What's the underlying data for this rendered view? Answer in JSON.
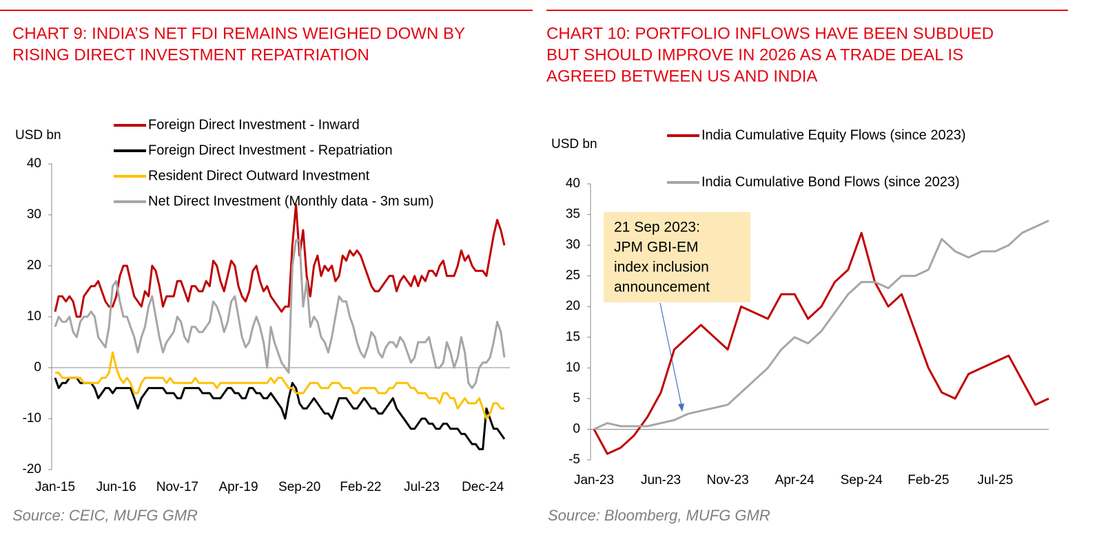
{
  "chart_data": [
    {
      "type": "line",
      "title": [
        "CHART 9: INDIA’S NET FDI REMAINS WEIGHED DOWN BY",
        "RISING DIRECT INVESTMENT REPATRIATION"
      ],
      "y_label": "USD bn",
      "source": "Source: CEIC, MUFG GMR",
      "ylim": [
        -20,
        40
      ],
      "yticks": [
        -20,
        -10,
        0,
        10,
        20,
        30,
        40
      ],
      "grid": false,
      "categories": [
        "Jan-15",
        null,
        null,
        null,
        null,
        null,
        null,
        null,
        null,
        null,
        null,
        null,
        null,
        null,
        null,
        null,
        null,
        "Jun-16",
        null,
        null,
        null,
        null,
        null,
        null,
        null,
        null,
        null,
        null,
        null,
        null,
        null,
        null,
        null,
        null,
        "Nov-17",
        null,
        null,
        null,
        null,
        null,
        null,
        null,
        null,
        null,
        null,
        null,
        null,
        null,
        null,
        null,
        null,
        "Apr-19",
        null,
        null,
        null,
        null,
        null,
        null,
        null,
        null,
        null,
        null,
        null,
        null,
        null,
        null,
        null,
        null,
        "Sep-20",
        null,
        null,
        null,
        null,
        null,
        null,
        null,
        null,
        null,
        null,
        null,
        null,
        null,
        null,
        null,
        null,
        "Feb-22",
        null,
        null,
        null,
        null,
        null,
        null,
        null,
        null,
        null,
        null,
        null,
        null,
        null,
        null,
        null,
        null,
        "Jul-23",
        null,
        null,
        null,
        null,
        null,
        null,
        null,
        null,
        null,
        null,
        null,
        null,
        null,
        null,
        null,
        null,
        "Dec-24",
        null,
        null,
        null,
        null,
        null,
        null
      ],
      "series": [
        {
          "name": "Foreign Direct Investment - Inward",
          "color": "#c00000",
          "values": [
            11,
            14,
            14,
            13,
            14,
            13,
            10,
            10,
            14,
            15,
            16,
            16,
            17,
            15,
            13,
            12,
            12,
            14,
            18,
            20,
            20,
            17,
            14,
            13,
            12,
            15,
            14,
            20,
            19,
            16,
            12,
            14,
            14,
            14,
            17,
            17,
            15,
            13,
            16,
            16,
            15,
            15,
            17,
            16,
            21,
            20,
            17,
            15,
            18,
            21,
            20,
            16,
            14,
            13,
            15,
            19,
            20,
            17,
            15,
            16,
            14,
            13,
            12,
            11,
            12,
            12,
            24,
            32,
            22,
            27,
            18,
            14,
            20,
            22,
            18,
            20,
            19,
            20,
            17,
            18,
            22,
            21,
            23,
            22,
            23,
            22,
            20,
            18,
            16,
            15,
            15,
            16,
            17,
            18,
            18,
            15,
            17,
            18,
            17,
            16,
            18,
            16,
            18,
            17,
            19,
            19,
            18,
            20,
            21,
            18,
            18,
            18,
            20,
            23,
            21,
            22,
            20,
            19,
            19,
            19,
            18,
            22,
            26,
            29,
            27,
            24
          ]
        },
        {
          "name": "Foreign Direct Investment -  Repatriation",
          "color": "#000000",
          "values": [
            -2,
            -4,
            -3,
            -3,
            -2,
            -2,
            -2,
            -3,
            -3,
            -3,
            -3,
            -4,
            -6,
            -5,
            -4,
            -4,
            -5,
            -4,
            -4,
            -4,
            -4,
            -4,
            -6,
            -8,
            -6,
            -5,
            -4,
            -4,
            -4,
            -4,
            -4,
            -5,
            -5,
            -5,
            -6,
            -6,
            -4,
            -4,
            -4,
            -4,
            -4,
            -5,
            -5,
            -5,
            -6,
            -6,
            -6,
            -5,
            -4,
            -4,
            -5,
            -5,
            -6,
            -6,
            -4,
            -4,
            -5,
            -5,
            -6,
            -6,
            -5,
            -6,
            -7,
            -8,
            -10,
            -6,
            -3,
            -4,
            -7,
            -8,
            -8,
            -7,
            -6,
            -7,
            -8,
            -9,
            -9,
            -10,
            -8,
            -6,
            -6,
            -6,
            -7,
            -8,
            -8,
            -7,
            -6,
            -7,
            -8,
            -8,
            -9,
            -9,
            -8,
            -7,
            -6,
            -8,
            -9,
            -10,
            -11,
            -12,
            -12,
            -11,
            -10,
            -10,
            -11,
            -11,
            -12,
            -12,
            -11,
            -11,
            -12,
            -12,
            -12,
            -13,
            -13,
            -14,
            -15,
            -15,
            -16,
            -16,
            -8,
            -10,
            -12,
            -12,
            -13,
            -14
          ]
        },
        {
          "name": "Resident Direct Outward Investment",
          "color": "#ffc000",
          "values": [
            -1,
            -1,
            -2,
            -2,
            -2,
            -2,
            -2,
            -2,
            -3,
            -3,
            -3,
            -3,
            -3,
            -2,
            -2,
            -1,
            3,
            0,
            -2,
            -3,
            -2,
            -3,
            -5,
            -5,
            -3,
            -2,
            -2,
            -2,
            -2,
            -2,
            -2,
            -3,
            -2,
            -3,
            -3,
            -3,
            -3,
            -3,
            -3,
            -2,
            -3,
            -3,
            -3,
            -3,
            -3,
            -4,
            -3,
            -3,
            -3,
            -3,
            -3,
            -3,
            -3,
            -3,
            -3,
            -3,
            -3,
            -3,
            -3,
            -3,
            -2,
            -3,
            -2,
            -2,
            -3,
            -4,
            -4,
            -5,
            -5,
            -5,
            -4,
            -3,
            -3,
            -3,
            -4,
            -4,
            -4,
            -3,
            -3,
            -3,
            -4,
            -4,
            -4,
            -5,
            -5,
            -4,
            -4,
            -4,
            -4,
            -4,
            -5,
            -5,
            -5,
            -4,
            -4,
            -3,
            -3,
            -3,
            -3,
            -4,
            -4,
            -5,
            -5,
            -5,
            -6,
            -6,
            -6,
            -7,
            -5,
            -5,
            -6,
            -6,
            -8,
            -7,
            -6,
            -7,
            -7,
            -7,
            -6,
            -8,
            -10,
            -9,
            -7,
            -7,
            -8,
            -8
          ]
        },
        {
          "name": "Net Direct Investment (Monthly data - 3m sum)",
          "color": "#a6a6a6",
          "values": [
            8,
            10,
            9,
            9,
            10,
            7,
            6,
            9,
            10,
            10,
            11,
            10,
            6,
            5,
            4,
            8,
            16,
            17,
            13,
            10,
            10,
            8,
            6,
            3,
            6,
            8,
            12,
            14,
            10,
            6,
            3,
            5,
            6,
            7,
            10,
            9,
            6,
            5,
            8,
            8,
            7,
            7,
            8,
            9,
            13,
            12,
            10,
            7,
            9,
            13,
            14,
            10,
            6,
            4,
            5,
            8,
            10,
            8,
            5,
            0,
            8,
            5,
            3,
            1,
            0,
            -1,
            20,
            25,
            25,
            12,
            17,
            8,
            10,
            9,
            6,
            5,
            3,
            6,
            10,
            14,
            13,
            13,
            10,
            8,
            5,
            3,
            2,
            4,
            7,
            6,
            3,
            2,
            4,
            5,
            5,
            4,
            6,
            5,
            3,
            1,
            2,
            5,
            5,
            5,
            6,
            3,
            0,
            0,
            1,
            5,
            3,
            0,
            2,
            6,
            3,
            -3,
            -4,
            -3,
            0,
            1,
            1,
            2,
            5,
            9,
            7,
            2
          ]
        }
      ]
    },
    {
      "type": "line",
      "title": [
        "CHART 10: PORTFOLIO INFLOWS HAVE BEEN SUBDUED",
        "BUT SHOULD IMPROVE IN 2026 AS A TRADE DEAL IS",
        "AGREED BETWEEN US AND INDIA"
      ],
      "y_label": "USD bn",
      "source": "Source: Bloomberg, MUFG GMR",
      "annotation": [
        "21 Sep 2023:",
        "JPM GBI-EM",
        "index inclusion",
        "announcement"
      ],
      "ylim": [
        -5,
        40
      ],
      "yticks": [
        -5,
        0,
        5,
        10,
        15,
        20,
        25,
        30,
        35,
        40
      ],
      "grid": false,
      "categories": [
        "Jan-23",
        null,
        null,
        null,
        null,
        "Jun-23",
        null,
        null,
        null,
        null,
        "Nov-23",
        null,
        null,
        null,
        null,
        "Apr-24",
        null,
        null,
        null,
        null,
        "Sep-24",
        null,
        null,
        null,
        null,
        "Feb-25",
        null,
        null,
        null,
        null,
        "Jul-25",
        null,
        null,
        null,
        null
      ],
      "series": [
        {
          "name": "India Cumulative Equity Flows (since 2023)",
          "color": "#c00000",
          "values": [
            0,
            -4,
            -3,
            -1,
            2,
            6,
            13,
            15,
            17,
            15,
            13,
            20,
            19,
            18,
            22,
            22,
            18,
            20,
            24,
            26,
            32,
            24,
            20,
            22,
            16,
            10,
            6,
            5,
            9,
            10,
            11,
            12,
            8,
            4,
            5
          ]
        },
        {
          "name": "India Cumulative Bond Flows (since 2023)",
          "color": "#a6a6a6",
          "values": [
            0,
            1,
            0.5,
            0.5,
            0.5,
            1,
            1.5,
            2.5,
            3,
            3.5,
            4,
            6,
            8,
            10,
            13,
            15,
            14,
            16,
            19,
            22,
            24,
            24,
            23,
            25,
            25,
            26,
            31,
            29,
            28,
            29,
            29,
            30,
            32,
            33,
            34
          ]
        }
      ]
    }
  ]
}
